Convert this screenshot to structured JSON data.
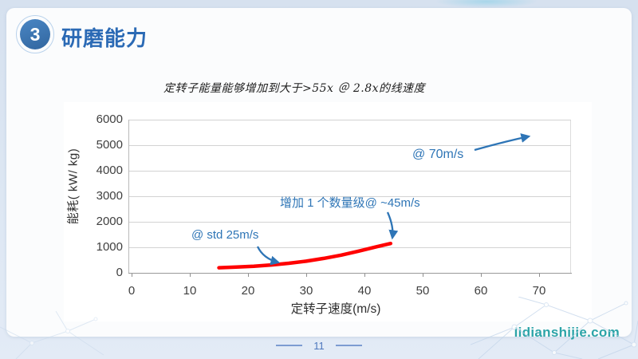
{
  "slide": {
    "badge_number": "3",
    "title": "研磨能力",
    "subtitle": "定转子能量能够增加到大于>55x ＠ 2.8x的线速度",
    "page_number": "11",
    "watermark": "lidianshijie.com"
  },
  "colors": {
    "title_blue": "#2b6ab5",
    "badge_blue": "#31669f",
    "annotation_blue": "#2e75b6",
    "curve_red": "#ff0000",
    "watermark_teal": "#2ca4a8",
    "background_blue": "#dde7f3"
  },
  "chart_data": {
    "type": "line",
    "title": "",
    "xlabel": "定转子速度(m/s)",
    "ylabel": "能耗( kW/ kg)",
    "xlim": [
      0,
      76
    ],
    "ylim": [
      0,
      6000
    ],
    "x_ticks": [
      "0",
      "10",
      "20",
      "30",
      "40",
      "50",
      "60",
      "70"
    ],
    "y_ticks": [
      "0",
      "1000",
      "2000",
      "3000",
      "4000",
      "5000",
      "6000"
    ],
    "grid": true,
    "legend": false,
    "series": [
      {
        "name": "能耗",
        "color": "#ff0000",
        "x": [
          15,
          18,
          21,
          24,
          27,
          30,
          33,
          36,
          39,
          42,
          44.5
        ],
        "y": [
          200,
          225,
          260,
          310,
          375,
          455,
          565,
          695,
          850,
          1020,
          1150
        ]
      }
    ],
    "annotations": [
      {
        "text": "@ std 25m/s",
        "color": "#2e75b6",
        "arrow_points_to": "curve at ~26 m/s"
      },
      {
        "text": "增加 1 个数量级@ ~45m/s",
        "color": "#2e75b6",
        "arrow_points_to": "curve end at ~45 m/s, ~1100 kW/kg"
      },
      {
        "text": "@ 70m/s",
        "color": "#2e75b6",
        "arrow_points_to": "upper right, ~70 m/s extrapolation"
      }
    ]
  }
}
